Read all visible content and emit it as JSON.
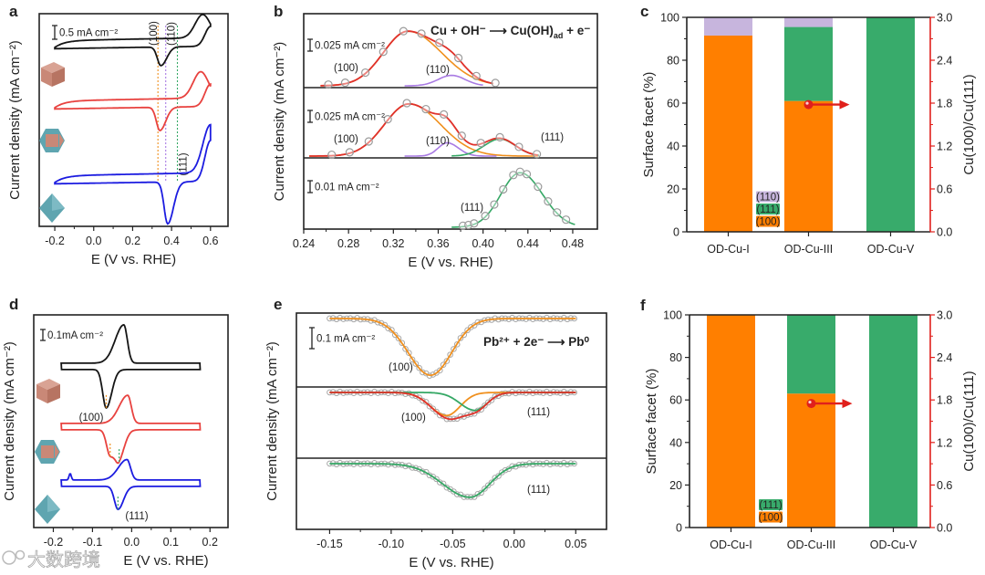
{
  "watermark": "大数跨境",
  "colors": {
    "black": "#151515",
    "red": "#e8423f",
    "blue": "#1c1ce0",
    "orange_fit": "#f0901e",
    "orange_bar": "#ff7f00",
    "green": "#35a865",
    "green_bar": "#38ab6b",
    "purple": "#a97be3",
    "lavender_bar": "#c7b5dd",
    "fit_red": "#e0312a",
    "axis_red": "#e0201c",
    "point": "#9a9a9a",
    "cube": "#c98877",
    "teal": "#5fa5b0"
  },
  "chart_data": [
    {
      "panel": "a",
      "type": "line",
      "xlabel": "E (V vs. RHE)",
      "ylabel": "Current density (mA cm⁻²)",
      "xlim": [
        -0.28,
        0.69
      ],
      "xticks": [
        -0.2,
        0.0,
        0.2,
        0.4,
        0.6
      ],
      "xtick_labels": [
        "-0.2",
        "0.0",
        "0.2",
        "0.4",
        "0.6"
      ],
      "scale_bar": "0.5 mA cm⁻²",
      "scale_bar_value": 0.5,
      "facet_markers": [
        {
          "label": "(100)",
          "E": 0.33,
          "color": "#f0901e"
        },
        {
          "label": "(110)",
          "E": 0.37,
          "color": "#a97be3"
        },
        {
          "label": "(111)",
          "E": 0.43,
          "color": "#35a865"
        }
      ],
      "series": [
        {
          "name": "cube",
          "color": "#151515",
          "anodic_peak_E": 0.56,
          "anodic_peak_height": 0.75,
          "cathodic_peak_E": 0.345,
          "cathodic_peak_depth": 0.6
        },
        {
          "name": "cuboctahedron",
          "color": "#e8423f",
          "anodic_peak_E": 0.55,
          "anodic_peak_height": 0.85,
          "cathodic_peak_E": 0.34,
          "cathodic_peak_depth": 0.75
        },
        {
          "name": "octahedron",
          "color": "#1c1ce0",
          "anodic_peak_E": 0.6,
          "anodic_peak_height": 1.55,
          "cathodic_peak_E": 0.38,
          "cathodic_peak_depth": 1.35
        }
      ]
    },
    {
      "panel": "b",
      "type": "line",
      "xlabel": "E (V vs. RHE)",
      "ylabel": "Current density (mA cm⁻²)",
      "xlim": [
        0.24,
        0.502
      ],
      "xticks": [
        0.24,
        0.28,
        0.32,
        0.36,
        0.4,
        0.44,
        0.48
      ],
      "xtick_labels": [
        "0.24",
        "0.28",
        "0.32",
        "0.36",
        "0.40",
        "0.44",
        "0.48"
      ],
      "equation": {
        "left": "Cu + OH⁻ ⟶ Cu(OH)",
        "sub": "ad",
        "right": " + e⁻"
      },
      "subpanels": [
        {
          "scale_bar": "0.025 mA cm⁻²",
          "scale_bar_value": 0.025,
          "range": [
            0.255,
            0.41
          ],
          "components": [
            {
              "label": "(100)",
              "color": "#f0901e",
              "center": 0.333,
              "sigma_left": 0.022,
              "sigma_right": 0.03,
              "amplitude": 0.115,
              "range": [
                0.255,
                0.41
              ]
            },
            {
              "label": "(110)",
              "color": "#a97be3",
              "center": 0.372,
              "sigma_left": 0.012,
              "sigma_right": 0.012,
              "amplitude": 0.022,
              "range": [
                0.33,
                0.4
              ]
            }
          ],
          "points_E": [
            0.262,
            0.277,
            0.295,
            0.311,
            0.329,
            0.345,
            0.361,
            0.378,
            0.394,
            0.411
          ]
        },
        {
          "scale_bar": "0.025 mA cm⁻²",
          "scale_bar_value": 0.025,
          "range": [
            0.245,
            0.45
          ],
          "components": [
            {
              "label": "(100)",
              "color": "#f0901e",
              "center": 0.334,
              "sigma_left": 0.022,
              "sigma_right": 0.028,
              "amplitude": 0.11,
              "range": [
                0.245,
                0.45
              ]
            },
            {
              "label": "(110)",
              "color": "#a97be3",
              "center": 0.368,
              "sigma_left": 0.008,
              "sigma_right": 0.01,
              "amplitude": 0.028,
              "range": [
                0.33,
                0.413
              ]
            },
            {
              "label": "(111)",
              "color": "#35a865",
              "center": 0.415,
              "sigma_left": 0.014,
              "sigma_right": 0.014,
              "amplitude": 0.036,
              "range": [
                0.372,
                0.45
              ]
            }
          ],
          "points_E": [
            0.265,
            0.281,
            0.298,
            0.315,
            0.332,
            0.349,
            0.365,
            0.381,
            0.398,
            0.415,
            0.432,
            0.448
          ]
        },
        {
          "scale_bar": "0.01 mA cm⁻²",
          "scale_bar_value": 0.01,
          "range": [
            0.372,
            0.483
          ],
          "components": [
            {
              "label": "(111)",
              "color": "#35a865",
              "center": 0.433,
              "sigma_left": 0.017,
              "sigma_right": 0.02,
              "amplitude": 0.046,
              "range": [
                0.372,
                0.483
              ]
            }
          ],
          "points_E": [
            0.382,
            0.387,
            0.392,
            0.402,
            0.41,
            0.418,
            0.427,
            0.433,
            0.439,
            0.449,
            0.458,
            0.466,
            0.474
          ]
        }
      ]
    },
    {
      "panel": "c",
      "type": "bar",
      "stacked": true,
      "categories": [
        "OD-Cu-I",
        "OD-Cu-III",
        "OD-Cu-V"
      ],
      "series": [
        {
          "name": "(100)",
          "color": "#ff7f00",
          "values": [
            91.5,
            61,
            0
          ]
        },
        {
          "name": "(111)",
          "color": "#38ab6b",
          "values": [
            0,
            34.5,
            100
          ]
        },
        {
          "name": "(110)",
          "color": "#c7b5dd",
          "values": [
            8.5,
            4.5,
            0
          ]
        }
      ],
      "ylabel": "Surface facet (%)",
      "ylim": [
        0,
        100
      ],
      "yticks": [
        0,
        20,
        40,
        60,
        80,
        100
      ],
      "ytick_labels": [
        "0",
        "20",
        "40",
        "60",
        "80",
        "100"
      ],
      "y2label": "Cu(100)/Cu(111)",
      "y2lim": [
        0,
        3.0
      ],
      "y2ticks": [
        0,
        0.6,
        1.2,
        1.8,
        2.4,
        3.0
      ],
      "y2tick_labels": [
        "0.0",
        "0.6",
        "1.2",
        "1.8",
        "2.4",
        "3.0"
      ],
      "ratio_point": {
        "category": "OD-Cu-III",
        "value": 1.78
      },
      "legend": [
        "(110)",
        "(111)",
        "(100)"
      ],
      "legend_position": "bottom-center"
    },
    {
      "panel": "d",
      "type": "line",
      "xlabel": "E (V vs. RHE)",
      "ylabel": "Current density (mA cm⁻²)",
      "xlim": [
        -0.25,
        0.246
      ],
      "xticks": [
        -0.2,
        -0.1,
        0.0,
        0.1,
        0.2
      ],
      "xtick_labels": [
        "-0.2",
        "-0.1",
        "0.0",
        "0.1",
        "0.2"
      ],
      "scale_bar": "0.1mA cm⁻²",
      "scale_bar_value": 0.1,
      "annotations": [
        {
          "label": "(100)",
          "color": "#f0901e"
        },
        {
          "label": "(111)",
          "color": "#35a865"
        }
      ],
      "series": [
        {
          "name": "cube",
          "color": "#151515",
          "anodic_peak_E": -0.02,
          "anodic_peak_height": 0.3,
          "cathodic_peaks": [
            {
              "E": -0.065,
              "depth": 0.3
            }
          ]
        },
        {
          "name": "cuboctahedron",
          "color": "#e8423f",
          "anodic_peak_E": -0.01,
          "anodic_peak_height": 0.22,
          "cathodic_peaks": [
            {
              "E": -0.055,
              "depth": 0.2
            },
            {
              "E": -0.032,
              "depth": 0.2
            }
          ]
        },
        {
          "name": "octahedron",
          "color": "#1c1ce0",
          "anodic_peak_E": -0.012,
          "anodic_peak_height": 0.16,
          "cathodic_peaks": [
            {
              "E": -0.035,
              "depth": 0.18
            }
          ]
        }
      ]
    },
    {
      "panel": "e",
      "type": "line",
      "xlabel": "E (V vs. RHE)",
      "ylabel": "Current density (mA cm⁻²)",
      "xlim": [
        -0.177,
        0.075
      ],
      "xticks": [
        -0.15,
        -0.1,
        -0.05,
        0.0,
        0.05
      ],
      "xtick_labels": [
        "-0.15",
        "-0.10",
        "-0.05",
        "0.00",
        "0.05"
      ],
      "equation": "Pb²⁺ + 2e⁻ ⟶ Pb⁰",
      "scale_bar": "0.1 mA cm⁻²",
      "scale_bar_value": 0.1,
      "subpanels": [
        {
          "components": [
            {
              "label": "(100)",
              "color": "#f0901e",
              "center": -0.068,
              "sigma_left": 0.018,
              "sigma_right": 0.017,
              "amplitude": 0.27
            }
          ],
          "total_color": null
        },
        {
          "components": [
            {
              "label": "(100)",
              "color": "#f0901e",
              "center": -0.055,
              "sigma_left": 0.013,
              "sigma_right": 0.011,
              "amplitude": 0.11
            },
            {
              "label": "(111)",
              "color": "#35a865",
              "center": -0.032,
              "sigma_left": 0.012,
              "sigma_right": 0.01,
              "amplitude": 0.085
            }
          ],
          "total_color": "#e0312a"
        },
        {
          "components": [
            {
              "label": "(111)",
              "color": "#35a865",
              "center": -0.036,
              "sigma_left": 0.022,
              "sigma_right": 0.016,
              "amplitude": 0.16
            }
          ],
          "total_color": null
        }
      ]
    },
    {
      "panel": "f",
      "type": "bar",
      "stacked": true,
      "categories": [
        "OD-Cu-I",
        "OD-Cu-III",
        "OD-Cu-V"
      ],
      "series": [
        {
          "name": "(100)",
          "color": "#ff7f00",
          "values": [
            100,
            63,
            0
          ]
        },
        {
          "name": "(111)",
          "color": "#38ab6b",
          "values": [
            0,
            37,
            100
          ]
        }
      ],
      "ylabel": "Surface facet (%)",
      "ylim": [
        0,
        100
      ],
      "yticks": [
        0,
        20,
        40,
        60,
        80,
        100
      ],
      "ytick_labels": [
        "0",
        "20",
        "40",
        "60",
        "80",
        "100"
      ],
      "y2label": "Cu(100)/Cu(111)",
      "y2lim": [
        0,
        3.0
      ],
      "y2ticks": [
        0,
        0.6,
        1.2,
        1.8,
        2.4,
        3.0
      ],
      "y2tick_labels": [
        "0.0",
        "0.6",
        "1.2",
        "1.8",
        "2.4",
        "3.0"
      ],
      "ratio_point": {
        "category": "OD-Cu-III",
        "value": 1.75
      },
      "legend": [
        "(111)",
        "(100)"
      ],
      "legend_position": "bottom-center"
    }
  ],
  "panel_labels": [
    "a",
    "b",
    "c",
    "d",
    "e",
    "f"
  ]
}
